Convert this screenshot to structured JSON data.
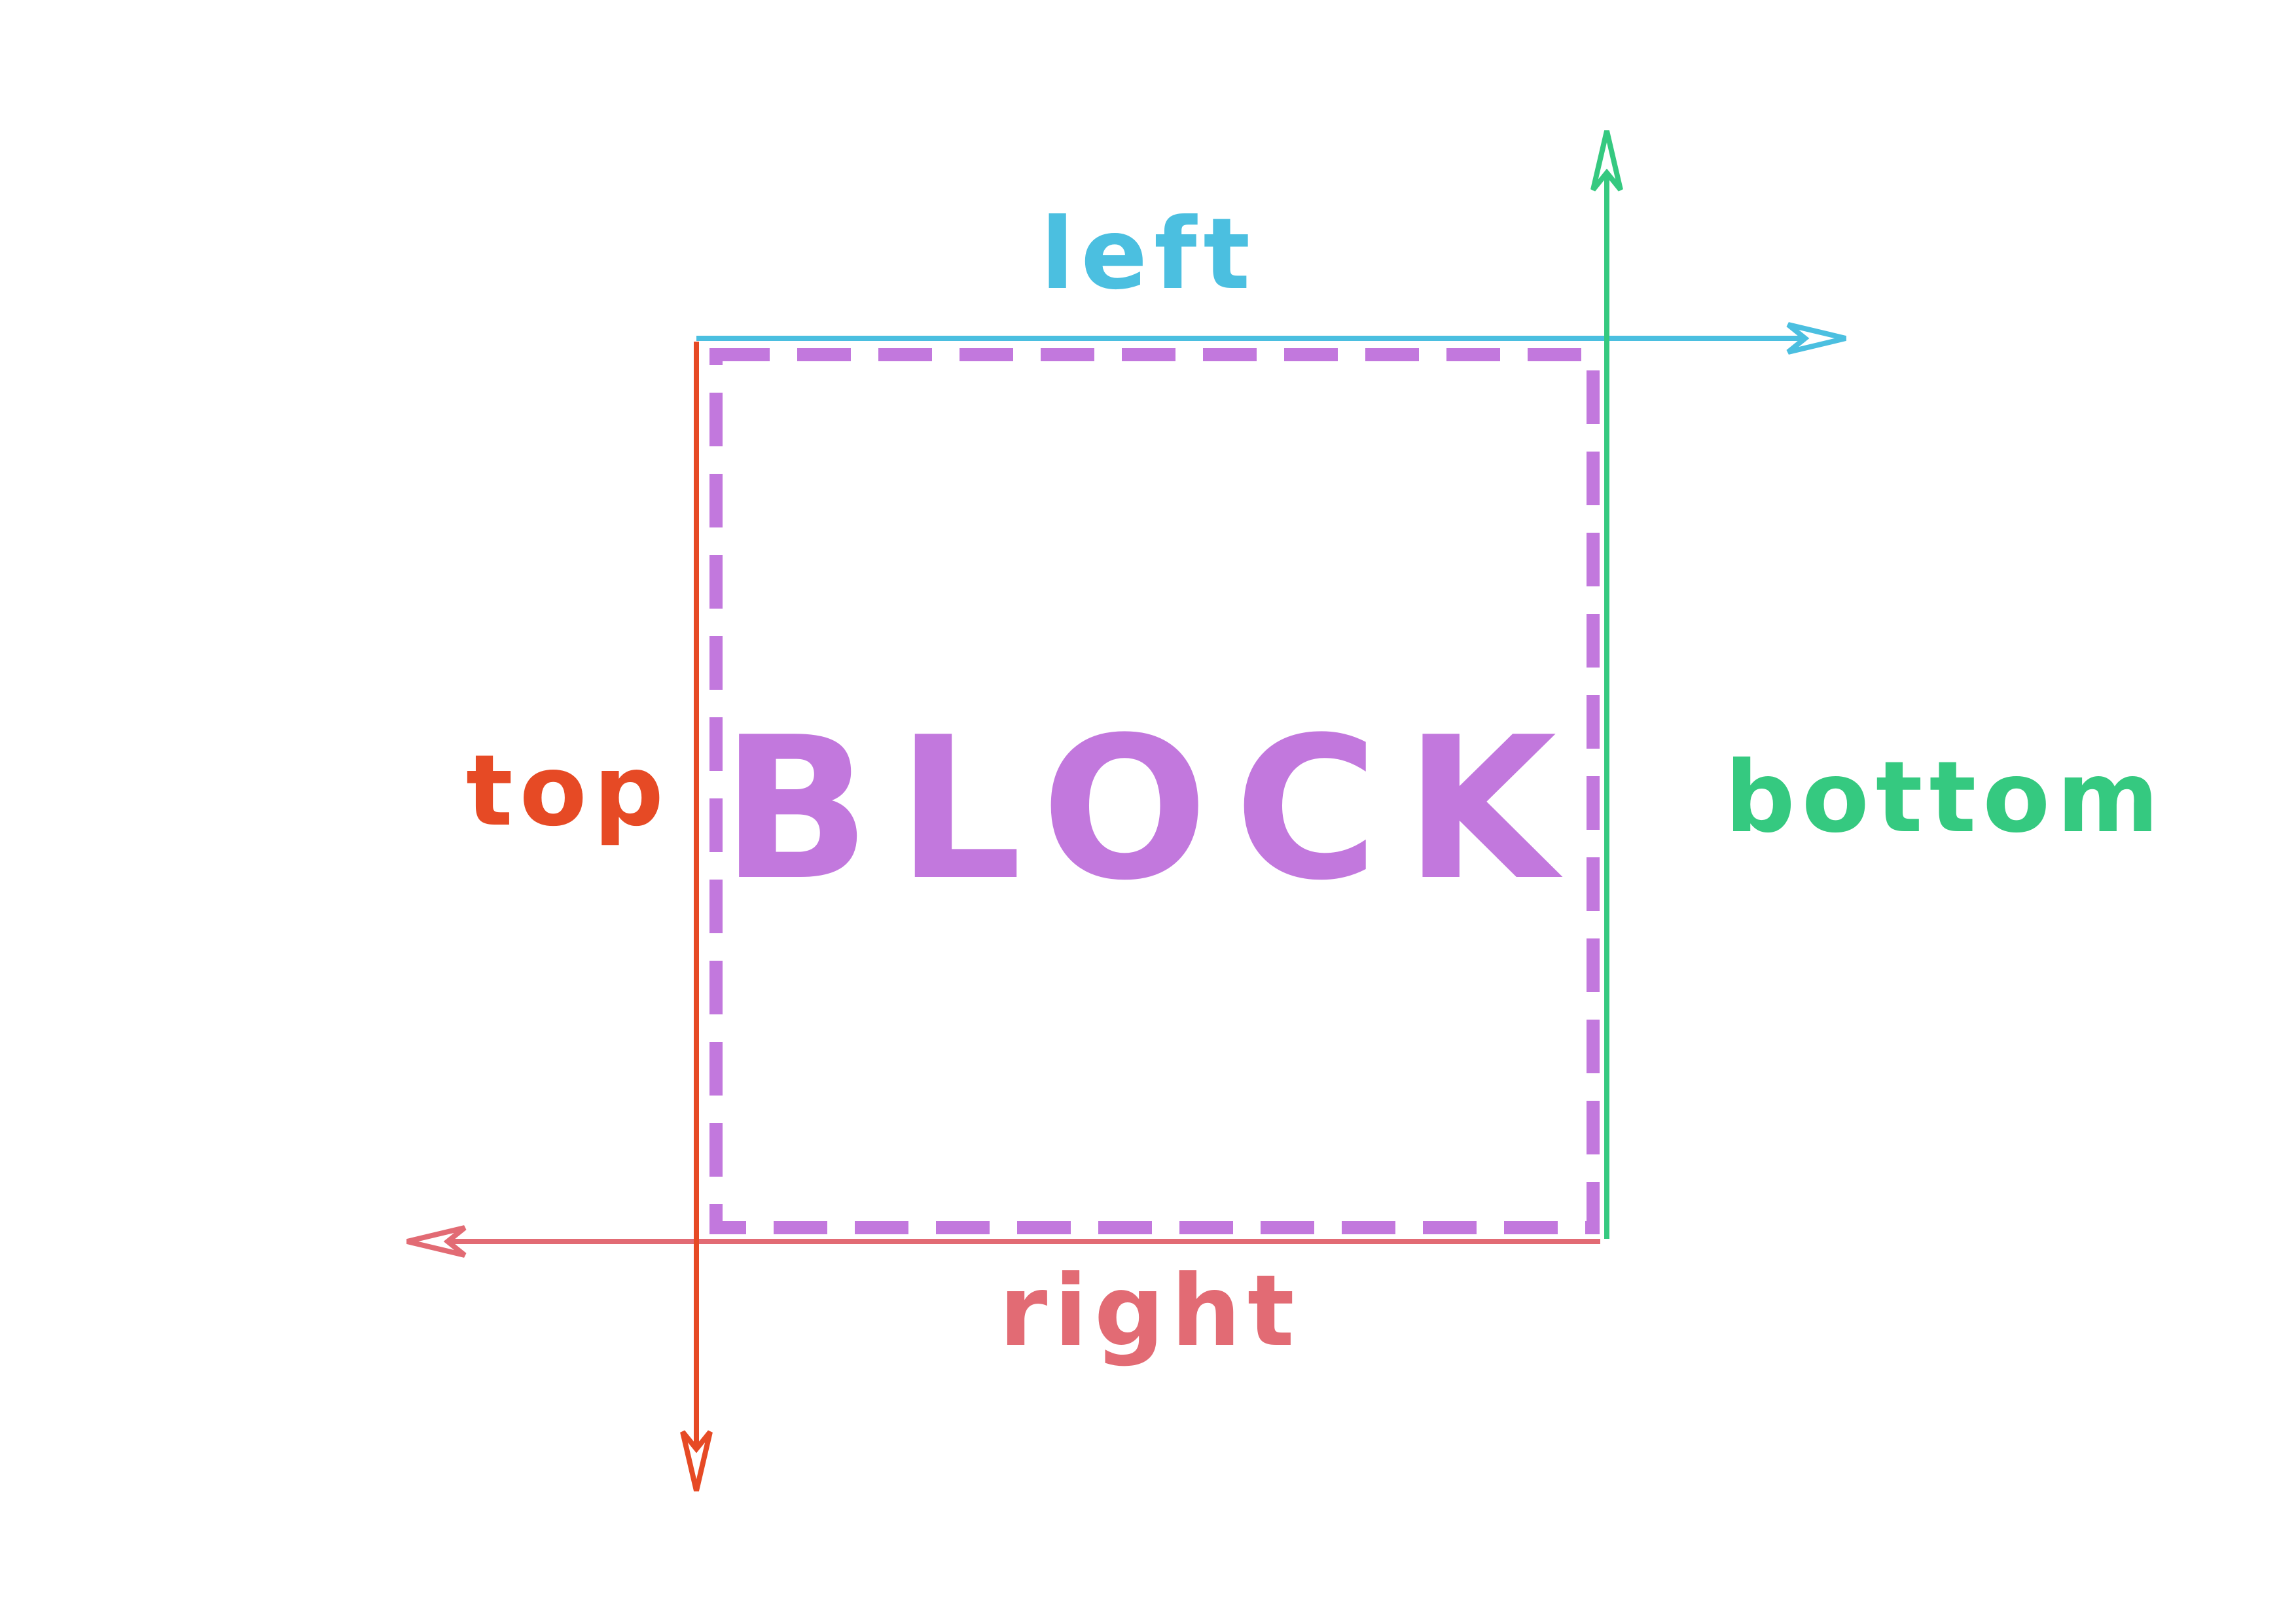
{
  "diagram": {
    "block_label": "BLOCK",
    "labels": {
      "left": "left",
      "top": "top",
      "bottom": "bottom",
      "right": "right"
    },
    "colors": {
      "background": "#ffffff",
      "block": "#c278dd",
      "left": "#4bbfe0",
      "top": "#e64a25",
      "bottom": "#35c980",
      "right": "#e26b74"
    }
  }
}
